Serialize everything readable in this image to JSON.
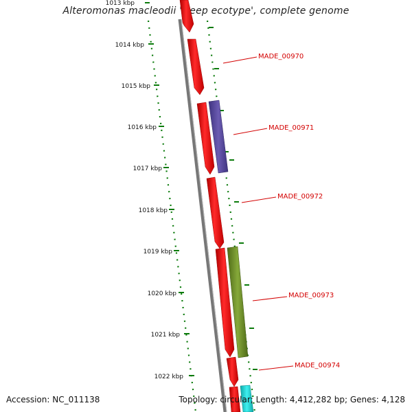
{
  "title": "Alteromonas macleodii 'Deep ecotype', complete genome",
  "ticks": [
    {
      "label": "1013 kbp"
    },
    {
      "label": "1014 kbp"
    },
    {
      "label": "1015 kbp"
    },
    {
      "label": "1016 kbp"
    },
    {
      "label": "1017 kbp"
    },
    {
      "label": "1018 kbp"
    },
    {
      "label": "1019 kbp"
    },
    {
      "label": "1020 kbp"
    },
    {
      "label": "1021 kbp"
    },
    {
      "label": "1022 kbp"
    }
  ],
  "genes": [
    {
      "label": "MADE_00970"
    },
    {
      "label": "MADE_00971"
    },
    {
      "label": "MADE_00972"
    },
    {
      "label": "MADE_00973"
    },
    {
      "label": "MADE_00974"
    }
  ],
  "colors": {
    "cds_red": "#ff0000",
    "purple": "#5a4a9e",
    "olive": "#6b8e23",
    "cyan": "#19d2d2",
    "backbone": "#777777",
    "dots": "#0a7a0a",
    "label_red": "#d30000"
  },
  "footer": {
    "accession": "Accession: NC_011138",
    "summary": "Topology: circular; Length: 4,412,282 bp; Genes: 4,128"
  }
}
